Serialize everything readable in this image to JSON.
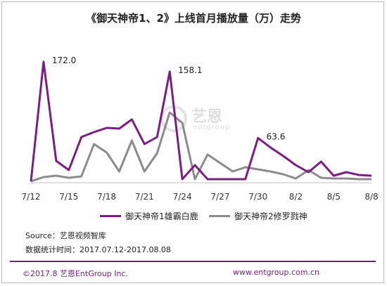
{
  "title": "《御天神帝1、2》上线首月播放量（万）走势",
  "colors": {
    "series1": "#7a1e82",
    "series2": "#8c8c8c",
    "footer": "#7a1e82"
  },
  "watermark": {
    "cn": "艺恩",
    "en": "entgroup"
  },
  "chart_data": {
    "type": "line",
    "x_tick_labels": [
      "7/12",
      "7/15",
      "7/18",
      "7/21",
      "7/24",
      "7/27",
      "7/30",
      "8/2",
      "8/5",
      "8/8"
    ],
    "x": [
      "7/12",
      "7/13",
      "7/14",
      "7/15",
      "7/16",
      "7/17",
      "7/18",
      "7/19",
      "7/20",
      "7/21",
      "7/22",
      "7/23",
      "7/24",
      "7/25",
      "7/26",
      "7/27",
      "7/28",
      "7/29",
      "7/30",
      "7/31",
      "8/1",
      "8/2",
      "8/3",
      "8/4",
      "8/5",
      "8/6",
      "8/7",
      "8/8"
    ],
    "ylim": [
      0,
      180
    ],
    "grid": false,
    "legend_position": "bottom",
    "series": [
      {
        "name": "御天神帝1雄霸白鹿",
        "color": "#7a1e82",
        "values": [
          2,
          172,
          31,
          18,
          65,
          72,
          78,
          77,
          90,
          55,
          65,
          158.1,
          5,
          25,
          5,
          5,
          5,
          5,
          63.6,
          50,
          38,
          25,
          15,
          30,
          10,
          15,
          11,
          10
        ]
      },
      {
        "name": "御天神帝2修罗戮神",
        "color": "#8c8c8c",
        "values": [
          2,
          8,
          10,
          7,
          9,
          55,
          43,
          16,
          60,
          16,
          42,
          100,
          85,
          5,
          40,
          28,
          16,
          22,
          19,
          16,
          12,
          6,
          18,
          7,
          6,
          6,
          5,
          5
        ]
      }
    ],
    "annotations": [
      {
        "series": 0,
        "index": 1,
        "label": "172.0"
      },
      {
        "series": 0,
        "index": 11,
        "label": "158.1"
      },
      {
        "series": 0,
        "index": 18,
        "label": "63.6"
      }
    ]
  },
  "source": "Source：艺恩视频智库",
  "period": "数据统计时间：2017.07.12-2017.08.08",
  "footer": {
    "copyright": "©2017.8 艺恩EntGroup Inc.",
    "website": "www.entgroup.com.cn"
  }
}
